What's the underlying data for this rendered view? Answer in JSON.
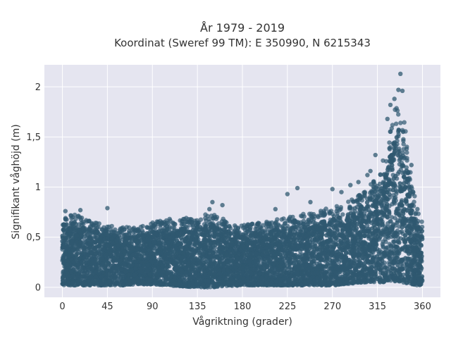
{
  "chart_data": {
    "type": "scatter",
    "title": "År 1979 - 2019",
    "subtitle": "Koordinat (Sweref 99 TM): E 350990, N 6215343",
    "xlabel": "Vågriktning (grader)",
    "ylabel": "Signifikant våghöjd (m)",
    "xlim": [
      -18,
      378
    ],
    "ylim": [
      -0.1,
      2.22
    ],
    "x_ticks": [
      0,
      45,
      90,
      135,
      180,
      225,
      270,
      315,
      360
    ],
    "x_tick_labels": [
      "0",
      "45",
      "90",
      "135",
      "180",
      "225",
      "270",
      "315",
      "360"
    ],
    "y_ticks": [
      0,
      0.5,
      1,
      1.5,
      2
    ],
    "y_tick_labels": [
      "0",
      "0,5",
      "1",
      "1,5",
      "2"
    ],
    "grid": true,
    "marker_color": "#2f5870",
    "background_color": "#e5e5f0",
    "envelope": {
      "x": [
        0,
        10,
        30,
        45,
        60,
        75,
        90,
        105,
        135,
        150,
        165,
        180,
        200,
        225,
        250,
        270,
        285,
        300,
        315,
        325,
        330,
        335,
        340,
        345,
        350,
        355,
        360
      ],
      "max_y": [
        0.75,
        0.73,
        0.68,
        0.62,
        0.6,
        0.6,
        0.65,
        0.68,
        0.7,
        0.75,
        0.66,
        0.62,
        0.65,
        0.7,
        0.75,
        0.8,
        0.85,
        0.95,
        1.1,
        1.4,
        1.7,
        1.9,
        1.9,
        1.4,
        1.0,
        0.8,
        0.65
      ],
      "min_y": [
        0.02,
        0.02,
        0.02,
        0.02,
        0.02,
        0.03,
        0.03,
        0.02,
        0.0,
        0.0,
        0.01,
        0.02,
        0.02,
        0.02,
        0.02,
        0.02,
        0.03,
        0.05,
        0.05,
        0.05,
        0.06,
        0.06,
        0.05,
        0.04,
        0.03,
        0.02,
        0.02
      ]
    },
    "outliers": [
      {
        "x": 338,
        "y": 2.13
      },
      {
        "x": 336,
        "y": 1.97
      },
      {
        "x": 340,
        "y": 1.96
      },
      {
        "x": 332,
        "y": 1.88
      },
      {
        "x": 328,
        "y": 1.82
      },
      {
        "x": 325,
        "y": 1.68
      },
      {
        "x": 313,
        "y": 1.32
      },
      {
        "x": 308,
        "y": 1.16
      },
      {
        "x": 305,
        "y": 1.12
      },
      {
        "x": 296,
        "y": 1.05
      },
      {
        "x": 288,
        "y": 1.02
      },
      {
        "x": 279,
        "y": 0.95
      },
      {
        "x": 270,
        "y": 0.98
      },
      {
        "x": 248,
        "y": 0.85
      },
      {
        "x": 235,
        "y": 0.99
      },
      {
        "x": 225,
        "y": 0.93
      },
      {
        "x": 213,
        "y": 0.78
      },
      {
        "x": 150,
        "y": 0.85
      },
      {
        "x": 160,
        "y": 0.82
      },
      {
        "x": 147,
        "y": 0.78
      },
      {
        "x": 45,
        "y": 0.79
      },
      {
        "x": 18,
        "y": 0.77
      },
      {
        "x": 3,
        "y": 0.76
      },
      {
        "x": 355,
        "y": 0.78
      },
      {
        "x": 349,
        "y": 1.22
      },
      {
        "x": 346,
        "y": 1.15
      }
    ]
  }
}
